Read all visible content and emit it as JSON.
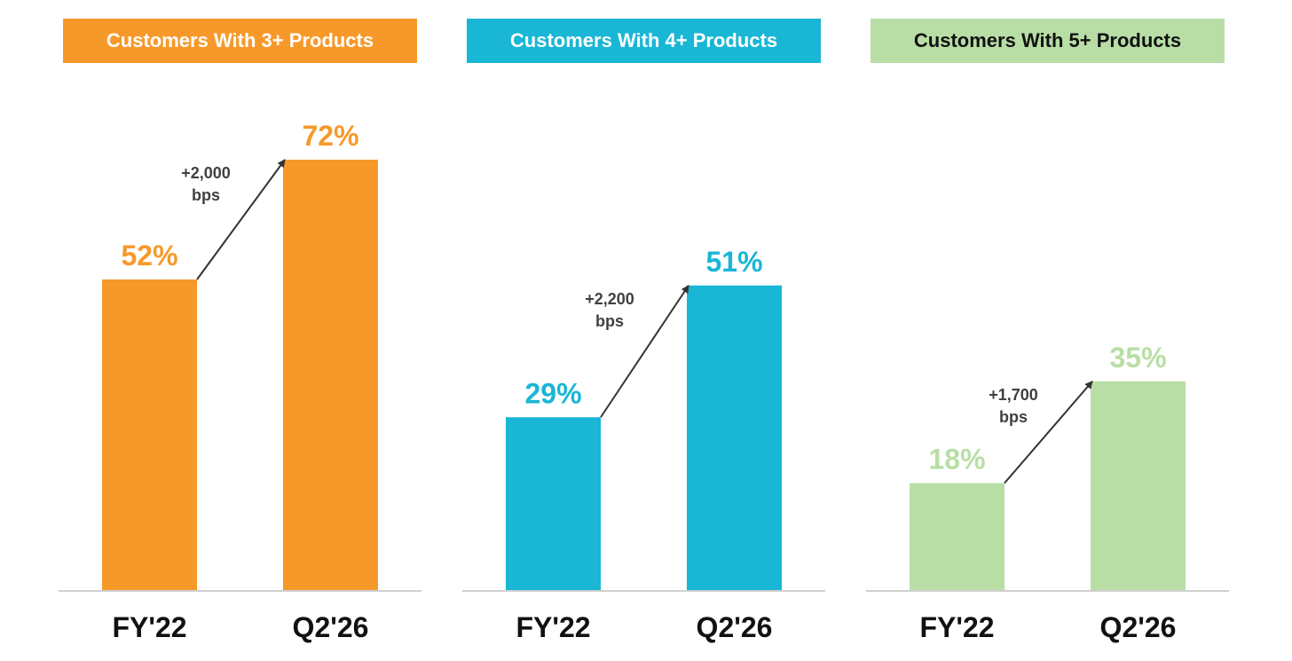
{
  "chart_data": [
    {
      "type": "bar",
      "title": "Customers With 3+ Products",
      "categories": [
        "FY'22",
        "Q2'26"
      ],
      "values": [
        52,
        72
      ],
      "value_labels": [
        "52%",
        "72%"
      ],
      "annotation": [
        "+2,000",
        "bps"
      ],
      "color": "#F7992A",
      "title_text_color": "#ffffff",
      "ylim": [
        0,
        100
      ]
    },
    {
      "type": "bar",
      "title": "Customers With 4+ Products",
      "categories": [
        "FY'22",
        "Q2'26"
      ],
      "values": [
        29,
        51
      ],
      "value_labels": [
        "29%",
        "51%"
      ],
      "annotation": [
        "+2,200",
        "bps"
      ],
      "color": "#19B6D6",
      "title_text_color": "#ffffff",
      "ylim": [
        0,
        100
      ]
    },
    {
      "type": "bar",
      "title": "Customers With 5+ Products",
      "categories": [
        "FY'22",
        "Q2'26"
      ],
      "values": [
        18,
        35
      ],
      "value_labels": [
        "18%",
        "35%"
      ],
      "annotation": [
        "+1,700",
        "bps"
      ],
      "color": "#B8DEA6",
      "title_text_color": "#111111",
      "ylim": [
        0,
        100
      ]
    }
  ]
}
